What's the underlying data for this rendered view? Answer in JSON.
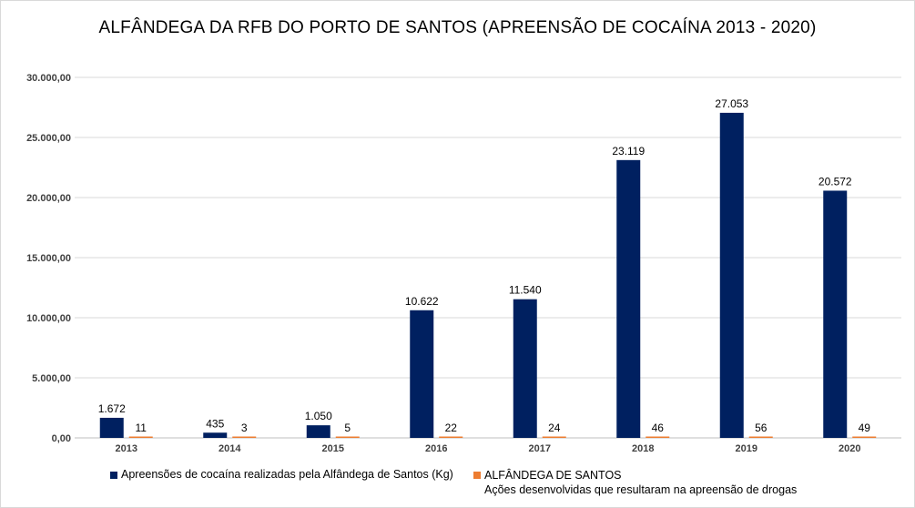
{
  "chart_data": {
    "type": "bar",
    "title": "ALFÂNDEGA DA RFB DO PORTO DE SANTOS  (APREENSÃO DE COCAÍNA 2013 - 2020)",
    "xlabel": "",
    "ylabel": "",
    "categories": [
      "2013",
      "2014",
      "2015",
      "2016",
      "2017",
      "2018",
      "2019",
      "2020"
    ],
    "ylim": [
      0,
      30000
    ],
    "yticks": [
      0,
      5000,
      10000,
      15000,
      20000,
      25000,
      30000
    ],
    "ytick_labels": [
      "0,00",
      "5.000,00",
      "10.000,00",
      "15.000,00",
      "20.000,00",
      "25.000,00",
      "30.000,00"
    ],
    "grid": true,
    "legend_position": "bottom",
    "series": [
      {
        "name": "Apreensões de cocaína realizadas pela Alfândega de Santos (Kg)",
        "color": "#002060",
        "values": [
          1672,
          435,
          1050,
          10622,
          11540,
          23119,
          27053,
          20572
        ],
        "labels": [
          "1.672",
          "435",
          "1.050",
          "10.622",
          "11.540",
          "23.119",
          "27.053",
          "20.572"
        ]
      },
      {
        "name": "ALFÂNDEGA DE SANTOS",
        "subtitle": "Ações desenvolvidas que resultaram na apreensão de drogas",
        "color": "#ED7D31",
        "values": [
          11,
          3,
          5,
          22,
          24,
          46,
          56,
          49
        ],
        "labels": [
          "11",
          "3",
          "5",
          "22",
          "24",
          "46",
          "56",
          "49"
        ]
      }
    ]
  }
}
